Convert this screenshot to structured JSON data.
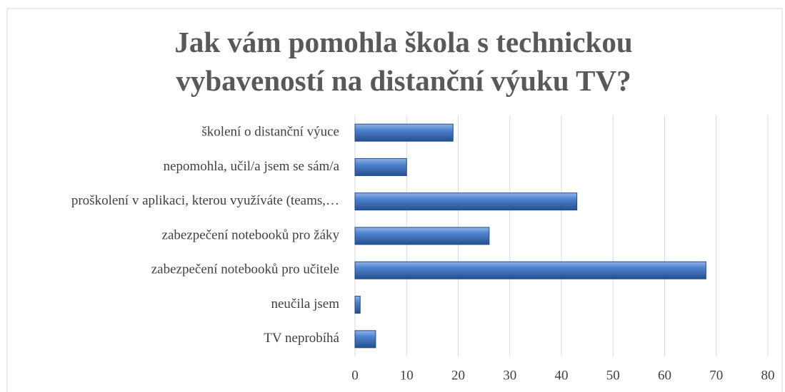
{
  "chart_data": {
    "type": "bar",
    "orientation": "horizontal",
    "title": "Jak vám pomohla škola s technickou vybaveností na distanční výuku TV?",
    "categories": [
      "školení o distanční výuce",
      "nepomohla, učil/a jsem se sám/a",
      "proškolení v aplikaci, kterou využíváte (teams,…",
      "zabezpečení notebooků pro žáky",
      "zabezpečení notebooků pro učitele",
      "neučila jsem",
      "TV neprobíhá"
    ],
    "values": [
      19,
      10,
      43,
      26,
      68,
      1,
      4
    ],
    "color": "#3f74c2",
    "xlim": [
      0,
      80
    ],
    "xticks": [
      0,
      10,
      20,
      30,
      40,
      50,
      60,
      70,
      80
    ],
    "grid": true
  }
}
